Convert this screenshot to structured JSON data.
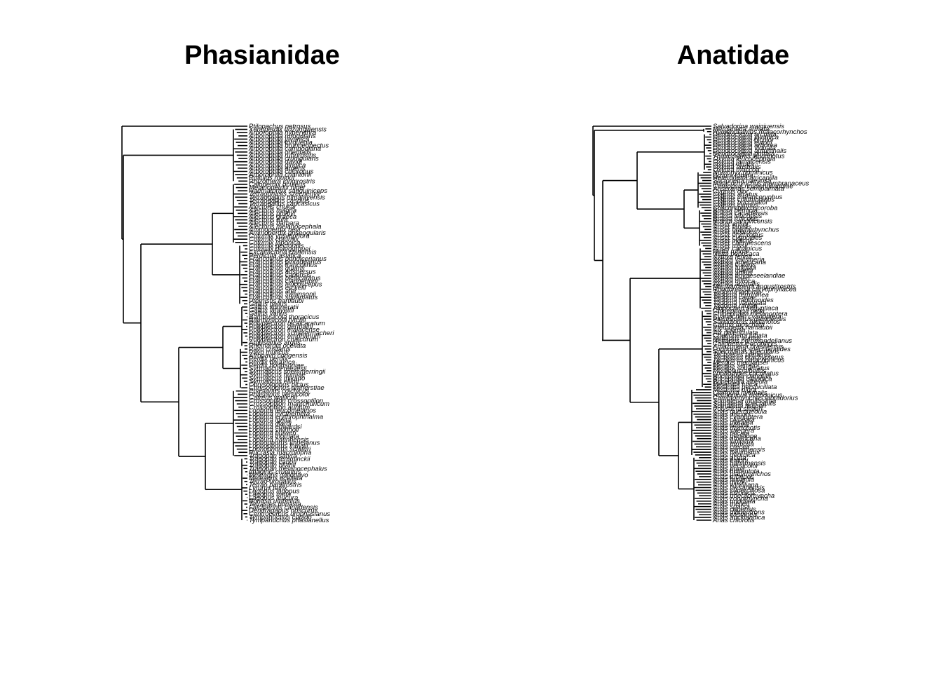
{
  "panels": [
    {
      "title": "Phasianidae",
      "tips": [
        "Ptilopachus petrosus",
        "Xenoperdix udzungwensis",
        "Arborophila hyperythra",
        "Arborophila rufogularis",
        "Arborophila javanica",
        "Arborophila torqueola",
        "Arborophila brunneopectus",
        "Arborophila cambodiana",
        "Arborophila orientalis",
        "Arborophila rubrirostris",
        "Arborophila crudigularis",
        "Arborophila davidi",
        "Arborophila gingica",
        "Arborophila ardens",
        "Arborophila chloropus",
        "Arborophila charltonii",
        "Rollulus rouloul",
        "Rhizothera longirostris",
        "Caloperdix oculeus",
        "Melanoperdix niger",
        "Haematortyx sanguiniceps",
        "Tetraophasis szechenyii",
        "Tetraogallus himalayensis",
        "Tetraogallus caspius",
        "Tetraogallus caucasicus",
        "Alectoris chukar",
        "Alectoris magna",
        "Alectoris philbyi",
        "Alectoris graeca",
        "Alectoris rufa",
        "Alectoris barbara",
        "Alectoris melanocephala",
        "Ammoperdix heyi",
        "Ammoperdix griseogularis",
        "Coturnix ypsilophora",
        "Coturnix coturnix",
        "Coturnix japonica",
        "Coturnix pectoralis",
        "Coturnix delegorguei",
        "Excalfactoria chinensis",
        "Perdicula asiatica",
        "Francolinus pondicerianus",
        "Francolinus pintadeanus",
        "Francolinus francolinus",
        "Francolinus gularis",
        "Francolinus adspersus",
        "Francolinus capensis",
        "Francolinus bicalcaratus",
        "Francolinus clappertoni",
        "Francolinus leucoscepus",
        "Francolinus erckelii",
        "Francolinus afer",
        "Francolinus swainsonii",
        "Francolinus squamatus",
        "Pternistis hartlaubi",
        "Gallus gallus",
        "Gallus sonneratii",
        "Gallus lafayettii",
        "Gallus varius",
        "Bambusicola thoracicus",
        "Bambusicola fytchii",
        "Polyplectron bicalcaratum",
        "Polyplectron germaini",
        "Polyplectron malacense",
        "Polyplectron schleiermacheri",
        "Polyplectron emphanum",
        "Polyplectron chalcurum",
        "Argusianus argus",
        "Rheinardia ocellata",
        "Pavo cristatus",
        "Pavo muticus",
        "Afropavo congensis",
        "Perdix perdix",
        "Perdix dauurica",
        "Perdix hodgsoniae",
        "Syrmaticus reevesii",
        "Syrmaticus soemmerringii",
        "Syrmaticus humiae",
        "Syrmaticus mikado",
        "Syrmaticus ellioti",
        "Chrysolophus pictus",
        "Chrysolophus amherstiae",
        "Phasianus colchicus",
        "Phasianus versicolor",
        "Catreus wallichii",
        "Crossoptilon crossoptilon",
        "Crossoptilon mantchuricum",
        "Crossoptilon auritum",
        "Lophura leucomelanos",
        "Lophura nycthemera",
        "Lophura erythrophthalma",
        "Lophura ignita",
        "Lophura diardi",
        "Lophura edwardsi",
        "Lophura swinhoii",
        "Lophura bulweri",
        "Lophura inornata",
        "Lophura hatinhensis",
        "Lophophorus impejanus",
        "Lophophorus lhuysii",
        "Lophophorus sclateri",
        "Pucrasia macrolopha",
        "Tragopan satyra",
        "Tragopan temminckii",
        "Tragopan caboti",
        "Tragopan blythii",
        "Tragopan melanocephalus",
        "Ithaginis cruentus",
        "Meleagris gallopavo",
        "Meleagris ocellata",
        "Tetrao urogallus",
        "Tetrao parvirostris",
        "Lyrurus tetrix",
        "Lagopus lagopus",
        "Lagopus muta",
        "Lagopus leucura",
        "Bonasa umbellus",
        "Tetrastes bonasia",
        "Falcipennis canadensis",
        "Dendragapus obscurus",
        "Centrocercus urophasianus",
        "Tympanuchus cupido",
        "Tympanuchus phasianellus"
      ]
    },
    {
      "title": "Anatidae",
      "tips": [
        "Salvadorina waigiuensis",
        "Merganetta armata",
        "Hymenolaimus malacorhynchos",
        "Dendrocygna arcuata",
        "Dendrocygna javanica",
        "Dendrocygna bicolor",
        "Dendrocygna eytoni",
        "Dendrocygna arborea",
        "Dendrocygna viduata",
        "Dendrocygna autumnalis",
        "Dendrocygna guttata",
        "Thalassornis leuconotus",
        "Oxyura leucocephala",
        "Oxyura jamaicensis",
        "Oxyura vittata",
        "Oxyura australis",
        "Oxyura maccoa",
        "Nomonyx dominicus",
        "Biziura lobata",
        "Heteronetta atricapilla",
        "Stictonetta naevosa",
        "Malacorhynchus membranaceus",
        "Cereopsis novaehollandiae",
        "Anseranas semipalmata",
        "Cygnus olor",
        "Cygnus atratus",
        "Cygnus melancoryphus",
        "Cygnus columbianus",
        "Cygnus buccinator",
        "Cygnus cygnus",
        "Coscoroba coscoroba",
        "Branta bernicla",
        "Branta canadensis",
        "Branta leucopsis",
        "Branta ruficollis",
        "Branta sandvicensis",
        "Anser anser",
        "Anser fabalis",
        "Anser brachyrhynchus",
        "Anser albifrons",
        "Anser erythropus",
        "Anser cygnoides",
        "Anser indicus",
        "Anser caerulescens",
        "Anser rossii",
        "Anser canagicus",
        "Netta rufina",
        "Netta peposaca",
        "Aythya ferina",
        "Aythya valisineria",
        "Aythya americana",
        "Aythya collaris",
        "Aythya fuligula",
        "Aythya marila",
        "Aythya affinis",
        "Aythya novaeseelandiae",
        "Aythya baeri",
        "Aythya nyroca",
        "Aythya australis",
        "Marmaronetta angustirostris",
        "Rhodonessa caryophyllacea",
        "Tadorna tadorna",
        "Tadorna ferruginea",
        "Tadorna cana",
        "Tadorna tadornoides",
        "Tadorna variegata",
        "Tadorna radjah",
        "Alopochen aegyptiaca",
        "Chloephaga picta",
        "Chloephaga melanoptera",
        "Cyanochen cyanoptera",
        "Plectropterus gambensis",
        "Sarkidiornis melanotos",
        "Cairina moschata",
        "Pteronetta hartlaubii",
        "Aix sponsa",
        "Aix galericulata",
        "Chenonetta jubata",
        "Nettapus auritus",
        "Nettapus coromandelianus",
        "Callonetta leucophrys",
        "Amazonetta brasiliensis",
        "Lophonetta specularioides",
        "Speculanas specularis",
        "Tachyeres pteneres",
        "Tachyeres brachypterus",
        "Tachyeres patachonicus",
        "Mergus merganser",
        "Mergus serrator",
        "Mergus squamatus",
        "Mergellus albellus",
        "Lophodytes cucullatus",
        "Bucephala clangula",
        "Bucephala islandica",
        "Bucephala albeola",
        "Melanitta fusca",
        "Melanitta perspicillata",
        "Melanitta nigra",
        "Clangula hyemalis",
        "Histrionicus histrionicus",
        "Camptorhynchus labradorius",
        "Somateria mollissima",
        "Somateria spectabilis",
        "Somateria fischeri",
        "Polysticta stelleri",
        "Anas querquedula",
        "Anas discors",
        "Anas cyanoptera",
        "Anas clypeata",
        "Anas platalea",
        "Anas smithii",
        "Anas rhynchotis",
        "Anas strepera",
        "Anas falcata",
        "Anas penelope",
        "Anas americana",
        "Anas sibilatrix",
        "Anas formosa",
        "Anas crecca",
        "Anas carolinensis",
        "Anas flavirostris",
        "Anas georgica",
        "Anas acuta",
        "Anas eatoni",
        "Anas bahamensis",
        "Anas versicolor",
        "Anas puna",
        "Anas hottentota",
        "Anas platyrhynchos",
        "Anas rubripes",
        "Anas fulvigula",
        "Anas diazi",
        "Anas wyvilliana",
        "Anas laysanensis",
        "Anas superciliosa",
        "Anas luzonica",
        "Anas poecilorhyncha",
        "Anas zonorhyncha",
        "Anas undulata",
        "Anas melleri",
        "Anas sparsa",
        "Anas capensis",
        "Anas gibberifrons",
        "Anas castanea",
        "Anas aucklandica",
        "Anas chlorotis"
      ]
    }
  ]
}
